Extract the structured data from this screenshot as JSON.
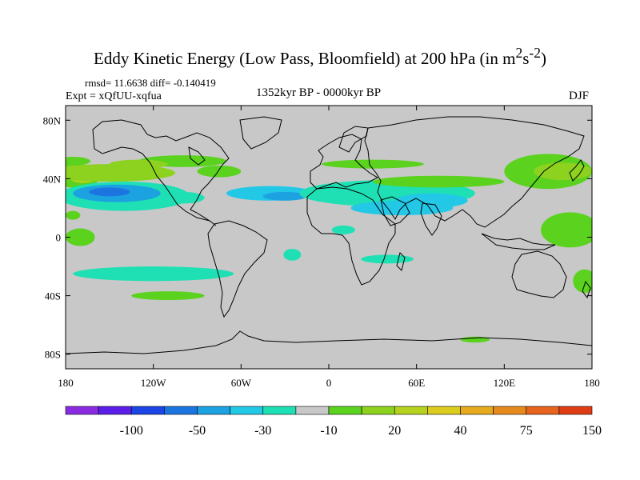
{
  "title_main": "Eddy Kinetic Energy (Low Pass, Bloomfield) at 200 hPa (in m",
  "title_sup1": "2",
  "title_mid": "s",
  "title_sup2": "-2",
  "title_end": ")",
  "stats_text": "rmsd= 11.6638 diff= -0.140419",
  "expt_text": "Expt = xQfUU-xqfua",
  "period_text": "1352kyr BP - 0000kyr BP",
  "season_text": "DJF",
  "chart_data": {
    "type": "heatmap",
    "title": "Eddy Kinetic Energy (Low Pass, Bloomfield) at 200 hPa (in m2s-2)",
    "xlim": [
      -180,
      180
    ],
    "ylim": [
      -90,
      90
    ],
    "x_ticks": [
      {
        "value": -180,
        "label": "180"
      },
      {
        "value": -120,
        "label": "120W"
      },
      {
        "value": -60,
        "label": "60W"
      },
      {
        "value": 0,
        "label": "0"
      },
      {
        "value": 60,
        "label": "60E"
      },
      {
        "value": 120,
        "label": "120E"
      },
      {
        "value": 180,
        "label": "180"
      }
    ],
    "y_ticks": [
      {
        "value": 80,
        "label": "80N"
      },
      {
        "value": 40,
        "label": "40N"
      },
      {
        "value": 0,
        "label": "0"
      },
      {
        "value": -40,
        "label": "40S"
      },
      {
        "value": -80,
        "label": "80S"
      }
    ],
    "colorbar": {
      "colors": [
        "#8a2be2",
        "#5a1ee8",
        "#1c45e6",
        "#1c74e0",
        "#1ca2e0",
        "#22c8e6",
        "#1ee0b4",
        "#c8c8c8",
        "#5ad21e",
        "#8cd21e",
        "#b4d21e",
        "#dccc1e",
        "#e6aa1e",
        "#e68a1e",
        "#e6641e",
        "#e03c14"
      ],
      "labels": [
        {
          "after_index": 1,
          "text": "-100"
        },
        {
          "after_index": 3,
          "text": "-50"
        },
        {
          "after_index": 5,
          "text": "-30"
        },
        {
          "after_index": 7,
          "text": "-10"
        },
        {
          "after_index": 9,
          "text": "20"
        },
        {
          "after_index": 11,
          "text": "40"
        },
        {
          "after_index": 13,
          "text": "75"
        },
        {
          "after_index": 15,
          "text": "150"
        }
      ]
    },
    "fields": [
      {
        "lon": -175,
        "lat": 42,
        "rx": 20,
        "ry": 8,
        "level": 8
      },
      {
        "lon": -168,
        "lat": 42,
        "rx": 10,
        "ry": 5,
        "level": 10
      },
      {
        "lon": -150,
        "lat": 44,
        "rx": 45,
        "ry": 6,
        "level": 9
      },
      {
        "lon": -175,
        "lat": 52,
        "rx": 12,
        "ry": 3,
        "level": 8
      },
      {
        "lon": -100,
        "lat": 52,
        "rx": 30,
        "ry": 4,
        "level": 8
      },
      {
        "lon": -130,
        "lat": 50,
        "rx": 20,
        "ry": 3,
        "level": 9
      },
      {
        "lon": -75,
        "lat": 45,
        "rx": 15,
        "ry": 4,
        "level": 8
      },
      {
        "lon": -140,
        "lat": 28,
        "rx": 45,
        "ry": 10,
        "level": 6
      },
      {
        "lon": -145,
        "lat": 30,
        "rx": 30,
        "ry": 6,
        "level": 4
      },
      {
        "lon": -150,
        "lat": 31,
        "rx": 14,
        "ry": 3,
        "level": 3
      },
      {
        "lon": -100,
        "lat": 27,
        "rx": 15,
        "ry": 4,
        "level": 6
      },
      {
        "lon": -40,
        "lat": 30,
        "rx": 30,
        "ry": 5,
        "level": 5
      },
      {
        "lon": -30,
        "lat": 28,
        "rx": 15,
        "ry": 3,
        "level": 4
      },
      {
        "lon": 40,
        "lat": 30,
        "rx": 60,
        "ry": 9,
        "level": 6
      },
      {
        "lon": 50,
        "lat": 20,
        "rx": 35,
        "ry": 5,
        "level": 5
      },
      {
        "lon": 70,
        "lat": 25,
        "rx": 25,
        "ry": 5,
        "level": 5
      },
      {
        "lon": 75,
        "lat": 38,
        "rx": 45,
        "ry": 4,
        "level": 8
      },
      {
        "lon": 30,
        "lat": 50,
        "rx": 35,
        "ry": 3,
        "level": 8
      },
      {
        "lon": 150,
        "lat": 45,
        "rx": 30,
        "ry": 12,
        "level": 8
      },
      {
        "lon": 160,
        "lat": 45,
        "rx": 20,
        "ry": 6,
        "level": 9
      },
      {
        "lon": 165,
        "lat": 5,
        "rx": 20,
        "ry": 12,
        "level": 8
      },
      {
        "lon": -120,
        "lat": -25,
        "rx": 55,
        "ry": 5,
        "level": 6
      },
      {
        "lon": -110,
        "lat": -40,
        "rx": 25,
        "ry": 3,
        "level": 8
      },
      {
        "lon": -170,
        "lat": 0,
        "rx": 10,
        "ry": 6,
        "level": 8
      },
      {
        "lon": -175,
        "lat": 15,
        "rx": 5,
        "ry": 3,
        "level": 8
      },
      {
        "lon": -25,
        "lat": -12,
        "rx": 6,
        "ry": 4,
        "level": 6
      },
      {
        "lon": 10,
        "lat": 5,
        "rx": 8,
        "ry": 3,
        "level": 6
      },
      {
        "lon": 40,
        "lat": -15,
        "rx": 18,
        "ry": 3,
        "level": 6
      },
      {
        "lon": 100,
        "lat": -70,
        "rx": 10,
        "ry": 2,
        "level": 8
      },
      {
        "lon": 175,
        "lat": -30,
        "rx": 8,
        "ry": 8,
        "level": 8
      }
    ]
  }
}
